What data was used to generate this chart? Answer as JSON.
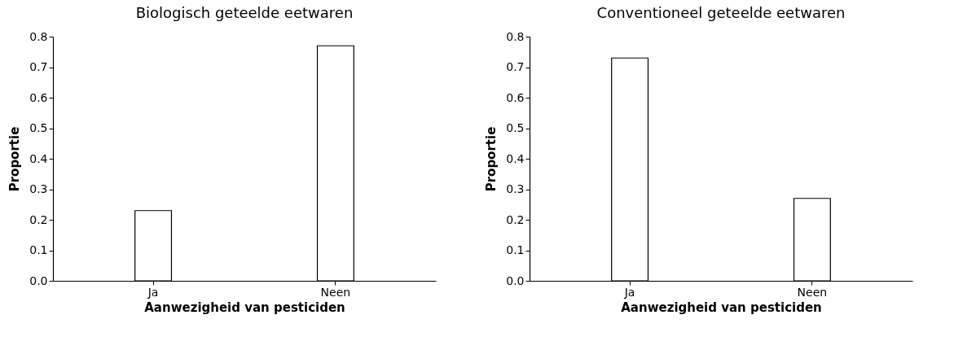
{
  "chart_data": [
    {
      "type": "bar",
      "title": "Biologisch geteelde eetwaren",
      "xlabel": "Aanwezigheid van pesticiden",
      "ylabel": "Proportie",
      "categories": [
        "Ja",
        "Neen"
      ],
      "values": [
        0.23,
        0.77
      ],
      "color": "#ffffff",
      "ylim": [
        0,
        0.8
      ],
      "yticks": [
        {
          "value": 0,
          "label": "0.0"
        },
        0.1,
        0.2,
        0.3,
        0.4,
        0.5,
        0.6,
        0.7,
        0.8
      ],
      "grid": false
    },
    {
      "type": "bar",
      "title": "Conventioneel geteelde eetwaren",
      "xlabel": "Aanwezigheid van pesticiden",
      "ylabel": "Proportie",
      "categories": [
        "Ja",
        "Neen"
      ],
      "values": [
        0.73,
        0.27
      ],
      "color": "#ffffff",
      "ylim": [
        0,
        0.8
      ],
      "yticks": [
        {
          "value": 0,
          "label": "0.0"
        },
        0.1,
        0.2,
        0.3,
        0.4,
        0.5,
        0.6,
        0.7,
        0.8
      ],
      "grid": false
    }
  ]
}
